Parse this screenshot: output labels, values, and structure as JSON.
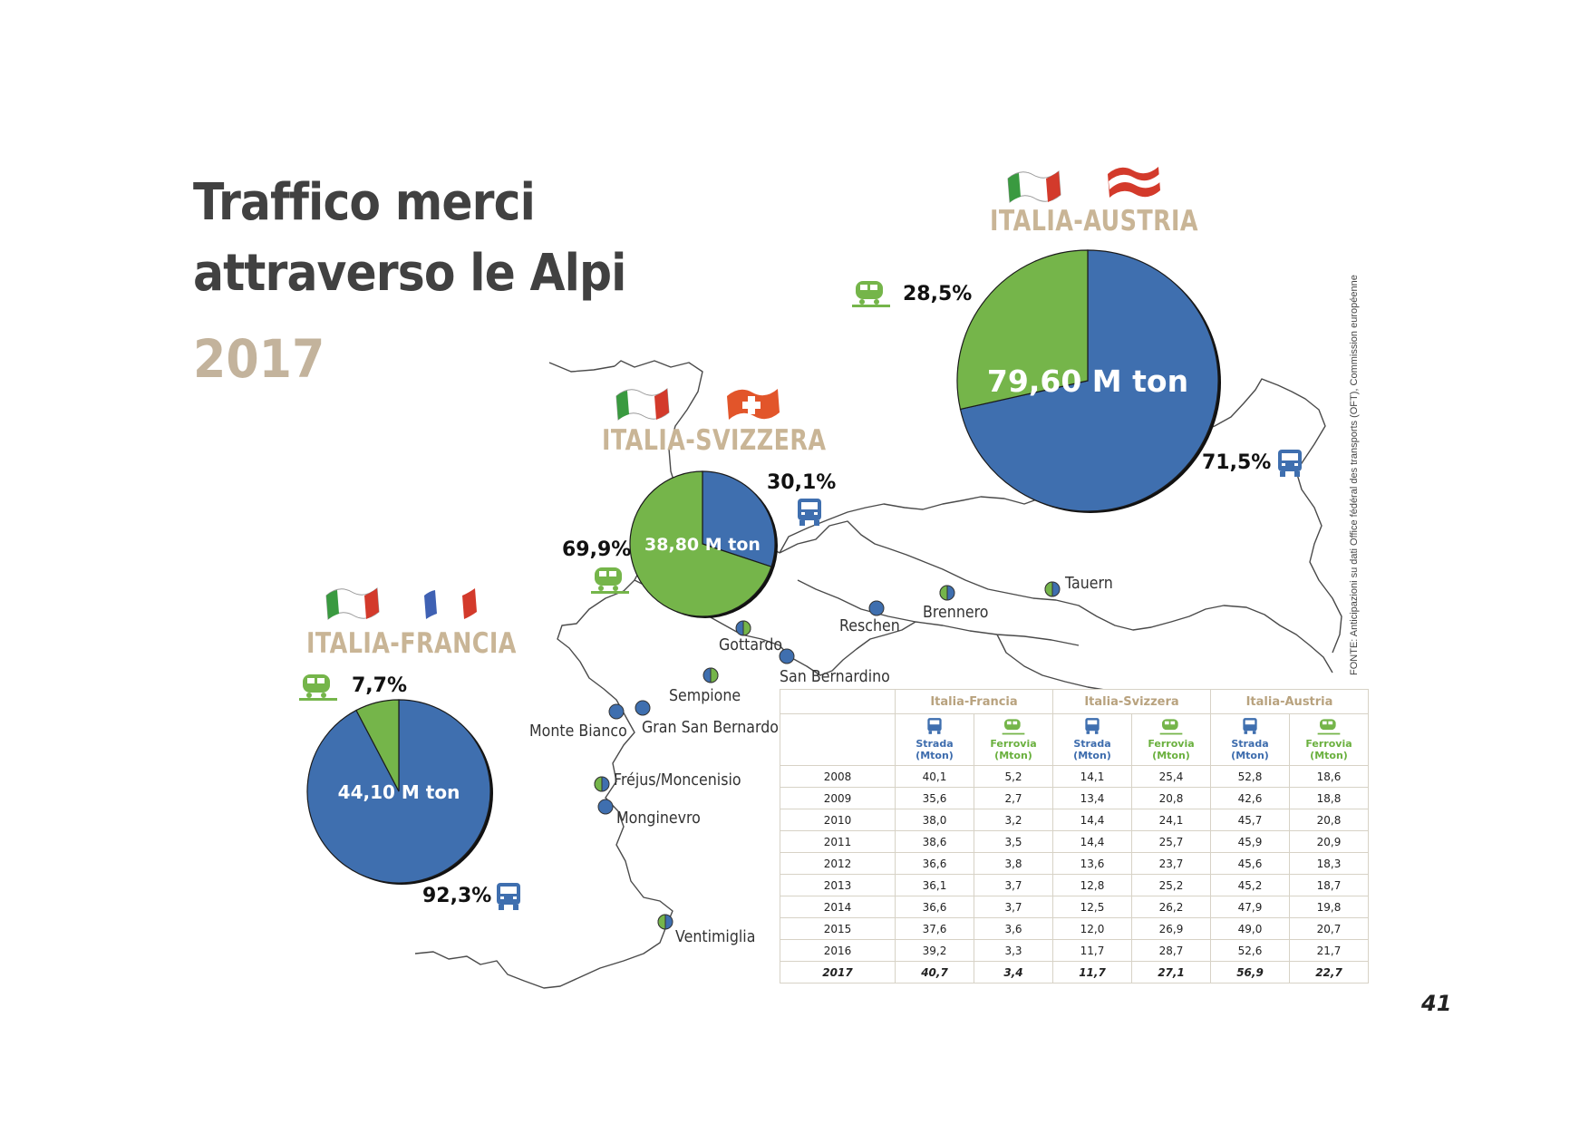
{
  "title_line1": "Traffico merci",
  "title_line2": "attraverso le Alpi",
  "year": "2017",
  "source": "FONTE: Anticipazioni su dati Office fédéral des transports (OFT), Commission européenne",
  "page_number": "41",
  "colors": {
    "road": "#3f6faf",
    "rail": "#75b54a",
    "country_label": "#c9b596",
    "title": "#414141",
    "year": "#c3b39c"
  },
  "passes": [
    {
      "name": "Tauern",
      "x": null
    },
    {
      "name": "Brennero"
    },
    {
      "name": "Reschen"
    },
    {
      "name": "Gottardo"
    },
    {
      "name": "San Bernardino"
    },
    {
      "name": "Sempione"
    },
    {
      "name": "Gran San Bernardo"
    },
    {
      "name": "Monte Bianco"
    },
    {
      "name": "Fréjus/Moncenisio"
    },
    {
      "name": "Monginevro"
    },
    {
      "name": "Ventimiglia"
    }
  ],
  "chart_data": [
    {
      "type": "pie",
      "title": "ITALIA-FRANCIA",
      "total_label": "44,10 M ton",
      "slices": [
        {
          "name": "Strada",
          "value": 92.3,
          "label": "92,3%",
          "color": "#3f6faf",
          "icon": "truck-icon"
        },
        {
          "name": "Ferrovia",
          "value": 7.7,
          "label": "7,7%",
          "color": "#75b54a",
          "icon": "train-icon"
        }
      ]
    },
    {
      "type": "pie",
      "title": "ITALIA-SVIZZERA",
      "total_label": "38,80 M ton",
      "slices": [
        {
          "name": "Strada",
          "value": 30.1,
          "label": "30,1%",
          "color": "#3f6faf",
          "icon": "truck-icon"
        },
        {
          "name": "Ferrovia",
          "value": 69.9,
          "label": "69,9%",
          "color": "#75b54a",
          "icon": "train-icon"
        }
      ]
    },
    {
      "type": "pie",
      "title": "ITALIA-AUSTRIA",
      "total_label": "79,60 M ton",
      "slices": [
        {
          "name": "Strada",
          "value": 71.5,
          "label": "71,5%",
          "color": "#3f6faf",
          "icon": "truck-icon"
        },
        {
          "name": "Ferrovia",
          "value": 28.5,
          "label": "28,5%",
          "color": "#75b54a",
          "icon": "train-icon"
        }
      ]
    },
    {
      "type": "table",
      "groups": [
        "Italia-Francia",
        "Italia-Svizzera",
        "Italia-Austria"
      ],
      "columns": [
        "Strada (Mton)",
        "Ferrovia (Mton)",
        "Strada (Mton)",
        "Ferrovia (Mton)",
        "Strada (Mton)",
        "Ferrovia (Mton)"
      ],
      "rows": [
        {
          "year": "2008",
          "values": [
            "40,1",
            "5,2",
            "14,1",
            "25,4",
            "52,8",
            "18,6"
          ]
        },
        {
          "year": "2009",
          "values": [
            "35,6",
            "2,7",
            "13,4",
            "20,8",
            "42,6",
            "18,8"
          ]
        },
        {
          "year": "2010",
          "values": [
            "38,0",
            "3,2",
            "14,4",
            "24,1",
            "45,7",
            "20,8"
          ]
        },
        {
          "year": "2011",
          "values": [
            "38,6",
            "3,5",
            "14,4",
            "25,7",
            "45,9",
            "20,9"
          ]
        },
        {
          "year": "2012",
          "values": [
            "36,6",
            "3,8",
            "13,6",
            "23,7",
            "45,6",
            "18,3"
          ]
        },
        {
          "year": "2013",
          "values": [
            "36,1",
            "3,7",
            "12,8",
            "25,2",
            "45,2",
            "18,7"
          ]
        },
        {
          "year": "2014",
          "values": [
            "36,6",
            "3,7",
            "12,5",
            "26,2",
            "47,9",
            "19,8"
          ]
        },
        {
          "year": "2015",
          "values": [
            "37,6",
            "3,6",
            "12,0",
            "26,9",
            "49,0",
            "20,7"
          ]
        },
        {
          "year": "2016",
          "values": [
            "39,2",
            "3,3",
            "11,7",
            "28,7",
            "52,6",
            "21,7"
          ]
        },
        {
          "year": "2017",
          "values": [
            "40,7",
            "3,4",
            "11,7",
            "27,1",
            "56,9",
            "22,7"
          ]
        }
      ]
    }
  ]
}
